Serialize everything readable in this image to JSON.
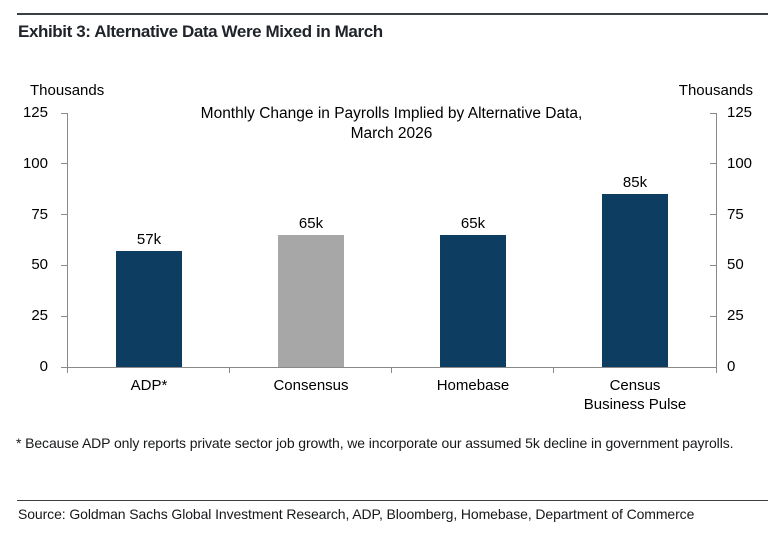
{
  "header": {
    "title": "Exhibit 3: Alternative Data Were Mixed in March"
  },
  "chart": {
    "title_lines": [
      "Monthly Change in Payrolls Implied by Alternative Data,",
      "March 2026"
    ],
    "left_unit_label": "Thousands",
    "right_unit_label": "Thousands"
  },
  "chart_data": {
    "type": "bar",
    "title": "Monthly Change in Payrolls Implied by Alternative Data, March 2026",
    "categories": [
      "ADP*",
      "Consensus",
      "Homebase",
      "Census Business Pulse"
    ],
    "values": [
      57,
      65,
      65,
      85
    ],
    "value_labels": [
      "57k",
      "65k",
      "65k",
      "85k"
    ],
    "bar_colors": [
      "#0d3e62",
      "#a7a7a7",
      "#0d3e62",
      "#0d3e62"
    ],
    "ylabel_left": "Thousands",
    "ylabel_right": "Thousands",
    "ylim": [
      0,
      125
    ],
    "yticks": [
      0,
      25,
      50,
      75,
      100,
      125
    ],
    "grid": false,
    "legend": "none",
    "colors": {
      "navy": "#0d3e62",
      "gray": "#a7a7a7",
      "axis_line": "#898989"
    }
  },
  "footnote": "* Because ADP only reports private sector job growth, we incorporate our assumed 5k decline in government payrolls.",
  "source": "Source: Goldman Sachs Global Investment Research, ADP, Bloomberg, Homebase, Department of Commerce"
}
